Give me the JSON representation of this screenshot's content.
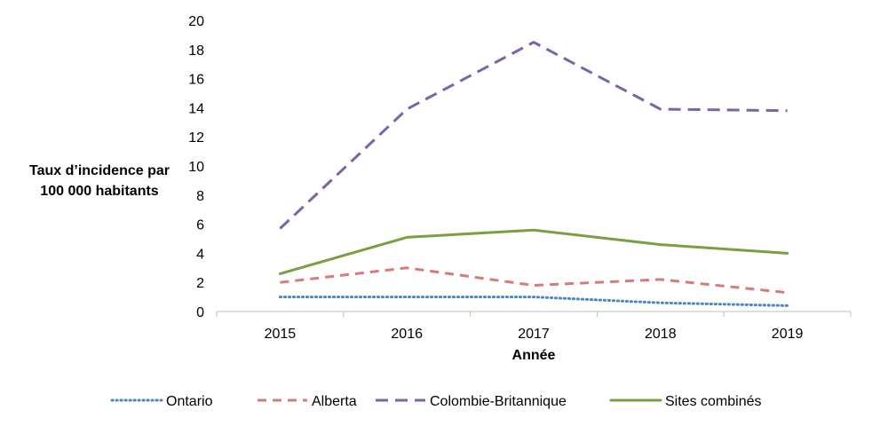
{
  "chart_data": {
    "type": "line",
    "title": "",
    "xlabel": "Année",
    "ylabel_lines": [
      "Taux d’incidence par",
      "100 000 habitants"
    ],
    "ylim": [
      0,
      20
    ],
    "yticks": [
      0,
      2,
      4,
      6,
      8,
      10,
      12,
      14,
      16,
      18,
      20
    ],
    "categories": [
      "2015",
      "2016",
      "2017",
      "2018",
      "2019"
    ],
    "grid": false,
    "legend_position": "bottom",
    "series": [
      {
        "name": "Ontario",
        "color": "#4A86C8",
        "style": "dotted",
        "values": [
          1.0,
          1.0,
          1.0,
          0.6,
          0.4
        ]
      },
      {
        "name": "Alberta",
        "color": "#D97A76",
        "style": "dashed",
        "values": [
          2.0,
          3.0,
          1.8,
          2.2,
          1.3
        ]
      },
      {
        "name": "Colombie-Britannique",
        "color": "#7E62A8",
        "style": "long-dashed",
        "values": [
          5.7,
          13.9,
          18.5,
          13.9,
          13.8
        ]
      },
      {
        "name": "Sites combinés",
        "color": "#77A040",
        "style": "solid",
        "values": [
          2.6,
          5.1,
          5.6,
          4.6,
          4.0
        ]
      }
    ]
  }
}
